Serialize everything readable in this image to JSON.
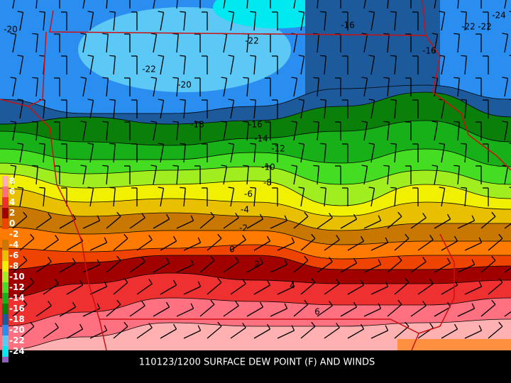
{
  "caption": "110123/1200 SURFACE DEW POINT (F) AND WINDS",
  "legend": {
    "labels": [
      "8",
      "6",
      "4",
      "2",
      "0",
      "-2",
      "-4",
      "-6",
      "-8",
      "-10",
      "-12",
      "-14",
      "-16",
      "-18",
      "-20",
      "-22",
      "-24"
    ],
    "colors": [
      "#ffb0b0",
      "#ff7080",
      "#ee3030",
      "#a00000",
      "#ee4400",
      "#ff7a00",
      "#c87800",
      "#e8c000",
      "#f0f000",
      "#a0ee20",
      "#44dd22",
      "#18b018",
      "#0a800a",
      "#1c5a9c",
      "#2a8ef0",
      "#5cc8f5",
      "#00e8f0"
    ]
  },
  "contour_labels": [
    "-20",
    "-16",
    "-16",
    "-22",
    "-22",
    "-20",
    "-18",
    "-16",
    "-14",
    "-12",
    "-10",
    "-8",
    "-6",
    "-4",
    "-2",
    "0",
    "2",
    "4",
    "6",
    "-24",
    "-22",
    "-22"
  ]
}
